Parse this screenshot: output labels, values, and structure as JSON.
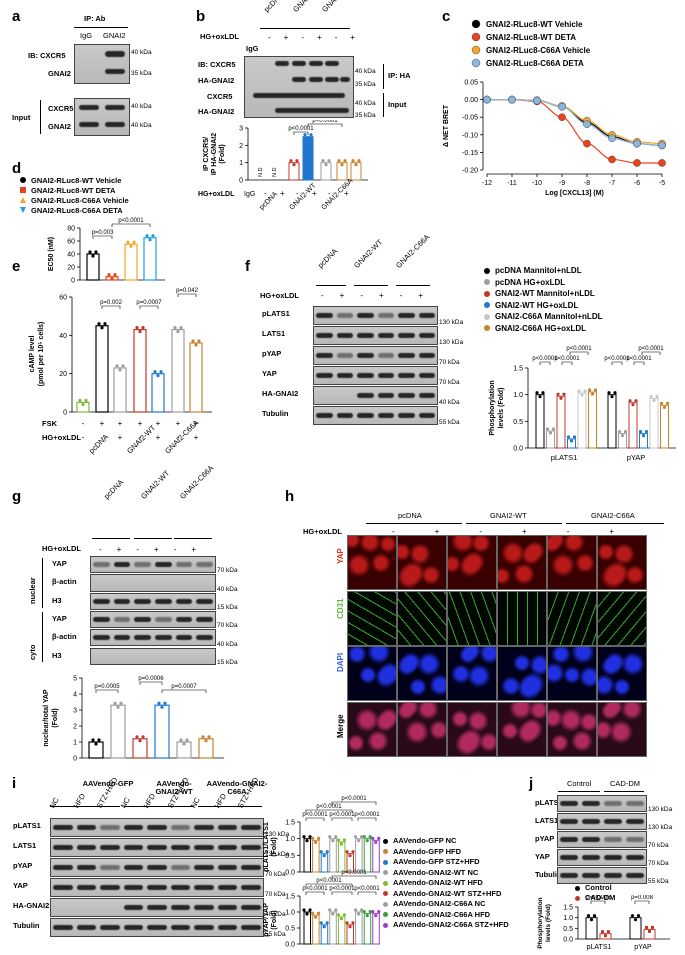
{
  "panels": {
    "a": {
      "letter": "a",
      "ip": "IP: Ab",
      "cols": [
        "IgG",
        "GNAI2"
      ],
      "rows": [
        "IB: CXCR5",
        "GNAI2",
        "CXCR5",
        "GNAI2"
      ],
      "input": "Input",
      "mw": [
        "40 kDa",
        "35 kDa",
        "40 kDa",
        "40 kDa"
      ]
    },
    "b": {
      "letter": "b",
      "groups": [
        "pcDNA",
        "GNAI2-WT",
        "GNAI2-C66A"
      ],
      "treat": "HG+oxLDL",
      "igg": "IgG",
      "rows": [
        "IB: CXCR5",
        "HA-GNAI2",
        "CXCR5",
        "HA-GNAI2"
      ],
      "ip": "IP: HA",
      "input": "Input",
      "mw": [
        "40 kDa",
        "35 kDa",
        "40 kDa",
        "35 kDa"
      ],
      "ylabel": "IP CXCR5/\nIP HA-GNAI2\n(Fold)",
      "pvals": [
        "p<0.0001",
        "p<0.0001"
      ],
      "nd": "N.D",
      "chart_data": {
        "type": "bar",
        "categories": [
          "IgG",
          "pcDNA -",
          "pcDNA +",
          "GNAI2-WT -",
          "GNAI2-WT +",
          "GNAI2-C66A -",
          "GNAI2-C66A +"
        ],
        "values": [
          0,
          0,
          1.0,
          2.5,
          1.0,
          1.0,
          1.0
        ],
        "ylim": [
          0,
          3
        ],
        "yticks": [
          "0",
          "1",
          "2",
          "3"
        ]
      }
    },
    "c": {
      "letter": "c",
      "ylabel": "Δ NET BRET",
      "xlabel": "Log [CXCL13] (M)",
      "legend": [
        "GNAI2-RLuc8-WT Vehicle",
        "GNAI2-RLuc8-WT DETA",
        "GNAI2-RLuc8-C66A Vehicle",
        "GNAI2-RLuc8-C66A DETA"
      ],
      "colors": [
        "#000000",
        "#e8431f",
        "#f6a52a",
        "#8ab7e0"
      ],
      "chart_data": {
        "type": "line",
        "x": [
          -12,
          -11,
          -10,
          -9,
          -8,
          -7,
          -6,
          -5
        ],
        "xlim": [
          -12,
          -5
        ],
        "ylim": [
          -0.2,
          0.05
        ],
        "yticks": [
          "0.05",
          "0.00",
          "-0.05",
          "-0.10",
          "-0.15",
          "-0.20"
        ],
        "xticks": [
          "-12",
          "-11",
          "-10",
          "-9",
          "-8",
          "-7",
          "-6",
          "-5"
        ],
        "series": [
          {
            "name": "GNAI2-RLuc8-WT Vehicle",
            "values": [
              0,
              0,
              -0.002,
              -0.02,
              -0.065,
              -0.105,
              -0.125,
              -0.13
            ]
          },
          {
            "name": "GNAI2-RLuc8-WT DETA",
            "values": [
              0,
              0,
              -0.005,
              -0.05,
              -0.125,
              -0.17,
              -0.18,
              -0.18
            ]
          },
          {
            "name": "GNAI2-RLuc8-C66A Vehicle",
            "values": [
              0,
              0,
              -0.002,
              -0.018,
              -0.06,
              -0.1,
              -0.12,
              -0.125
            ]
          },
          {
            "name": "GNAI2-RLuc8-C66A DETA",
            "values": [
              0,
              0,
              -0.003,
              -0.02,
              -0.07,
              -0.11,
              -0.125,
              -0.13
            ]
          }
        ]
      }
    },
    "d": {
      "letter": "d",
      "ylabel": "EC50 (nM)",
      "legend": [
        "GNAI2-RLuc8-WT Vehicle",
        "GNAI2-RLuc8-WT DETA",
        "GNAI2-RLuc8-C66A Vehicle",
        "GNAI2-RLuc8-C66A DETA"
      ],
      "pvals": [
        "p=0.003",
        "p<0.0001"
      ],
      "chart_data": {
        "type": "bar",
        "categories": [
          "WT Vehicle",
          "WT DETA",
          "C66A Vehicle",
          "C66A DETA"
        ],
        "values": [
          40,
          5,
          55,
          65
        ],
        "ylim": [
          0,
          80
        ],
        "yticks": [
          "0",
          "20",
          "40",
          "60",
          "80"
        ]
      }
    },
    "e": {
      "letter": "e",
      "ylabel": "cAMP level\n(pmol per 10⁵ cells)",
      "fsk": "FSK",
      "treat": "HG+oxLDL",
      "groups": [
        "pcDNA",
        "GNAI2-WT",
        "GNAI2-C66A"
      ],
      "pvals": [
        "p=0.002",
        "p=0.0007",
        "p=0.042"
      ],
      "chart_data": {
        "type": "bar",
        "categories": [
          "ctrl",
          "pcDNA -",
          "pcDNA +",
          "WT -",
          "WT +",
          "C66A -",
          "C66A +"
        ],
        "values": [
          5,
          45,
          23,
          43,
          20,
          43,
          36
        ],
        "ylim": [
          0,
          60
        ],
        "yticks": [
          "0",
          "20",
          "40",
          "60"
        ]
      }
    },
    "f": {
      "letter": "f",
      "groups": [
        "pcDNA",
        "GNAI2-WT",
        "GNAI2-C66A"
      ],
      "treat": "HG+oxLDL",
      "rows": [
        "pLATS1",
        "LATS1",
        "pYAP",
        "YAP",
        "HA-GNAI2",
        "Tubulin"
      ],
      "mw": [
        "130 kDa",
        "130 kDa",
        "70 kDa",
        "70 kDa",
        "40 kDa",
        "55 kDa"
      ],
      "legend": [
        "pcDNA Mannitol+nLDL",
        "pcDNA HG+oxLDL",
        "GNAI2-WT Mannitol+nLDL",
        "GNAI2-WT HG+oxLDL",
        "GNAI2-C66A Mannitol+nLDL",
        "GNAI2-C66A HG+oxLDL"
      ],
      "ylabel": "Phosphorylation\nlevels (Fold)",
      "pvals": [
        "p<0.0001",
        "p<0.0001",
        "p<0.0001",
        "p<0.0001",
        "p<0.0001",
        "p<0.0001"
      ],
      "chart_data": {
        "type": "bar",
        "categories": [
          "pLATS1",
          "pYAP"
        ],
        "series": [
          {
            "name": "pcDNA Mannitol+nLDL",
            "values": [
              1.0,
              1.0
            ]
          },
          {
            "name": "pcDNA HG+oxLDL",
            "values": [
              0.32,
              0.27
            ]
          },
          {
            "name": "GNAI2-WT Mannitol+nLDL",
            "values": [
              0.97,
              0.85
            ]
          },
          {
            "name": "GNAI2-WT HG+oxLDL",
            "values": [
              0.17,
              0.27
            ]
          },
          {
            "name": "GNAI2-C66A Mannitol+nLDL",
            "values": [
              1.03,
              0.93
            ]
          },
          {
            "name": "GNAI2-C66A HG+oxLDL",
            "values": [
              1.05,
              0.8
            ]
          }
        ],
        "ylim": [
          0,
          1.5
        ],
        "yticks": [
          "0.0",
          "0.5",
          "1.0",
          "1.5"
        ]
      }
    },
    "g": {
      "letter": "g",
      "groups": [
        "pcDNA",
        "GNAI2-WT",
        "GNAI2-C66A"
      ],
      "treat": "HG+oxLDL",
      "nuclear": "nuclear",
      "cyto": "cyto",
      "rows": [
        "YAP",
        "β-actin",
        "H3",
        "YAP",
        "β-actin",
        "H3"
      ],
      "mw": [
        "70 kDa",
        "40 kDa",
        "15 kDa",
        "70 kDa",
        "40 kDa",
        "15 kDa"
      ],
      "ylabel": "nuclear/total YAP\n(Fold)",
      "pvals": [
        "p=0.0005",
        "p=0.0006",
        "p=0.0007"
      ],
      "chart_data": {
        "type": "bar",
        "categories": [
          "pcDNA -",
          "pcDNA +",
          "WT -",
          "WT +",
          "C66A -",
          "C66A +"
        ],
        "values": [
          1.0,
          3.3,
          1.2,
          3.3,
          1.0,
          1.2
        ],
        "ylim": [
          0,
          5
        ],
        "yticks": [
          "0",
          "1",
          "2",
          "3",
          "4",
          "5"
        ]
      }
    },
    "h": {
      "letter": "h",
      "groups": [
        "pcDNA",
        "GNAI2-WT",
        "GNAI2-C66A"
      ],
      "treat": "HG+oxLDL",
      "rows": [
        "YAP",
        "CD31",
        "DAPI",
        "Merge"
      ]
    },
    "i": {
      "letter": "i",
      "groups": [
        "AAVendo-GFP",
        "AAVendo-GNAI2-WT",
        "AAVendo-GNAI2-C66A"
      ],
      "lanes": [
        "NC",
        "HFD",
        "STZ+HFD",
        "NC",
        "HFD",
        "STZ+HFD",
        "NC",
        "HFD",
        "STZ+HFD"
      ],
      "rows": [
        "pLATS1",
        "LATS1",
        "pYAP",
        "YAP",
        "HA-GNAI2",
        "Tubulin"
      ],
      "mw": [
        "130 kDa",
        "130 kDa",
        "70 kDa",
        "70 kDa",
        "40 kDa",
        "55 kDa"
      ],
      "legend": [
        "AAVendo-GFP NC",
        "AAVendo-GFP HFD",
        "AAVendo-GFP STZ+HFD",
        "AAVendo-GNAI2-WT NC",
        "AAVendo-GNAI2-WT HFD",
        "AAVendo-GNAI2-WT STZ+HFD",
        "AAVendo-GNAI2-C66A NC",
        "AAVendo-GNAI2-C66A HFD",
        "AAVendo-GNAI2-C66A STZ+HFD"
      ],
      "ylabel1": "pLATS1/LATS1\n(Fold)",
      "ylabel2": "pYAP/YAP\n(Fold)",
      "pval": "p<0.0001",
      "chart_data": [
        {
          "type": "bar",
          "categories": [
            "GFP NC",
            "GFP HFD",
            "GFP STZ+HFD",
            "WT NC",
            "WT HFD",
            "WT STZ+HFD",
            "C66A NC",
            "C66A HFD",
            "C66A STZ+HFD"
          ],
          "values": [
            1.0,
            0.95,
            0.55,
            1.0,
            0.9,
            0.55,
            1.0,
            1.0,
            0.95
          ],
          "ylim": [
            0,
            1.5
          ],
          "yticks": [
            "0.0",
            "0.5",
            "1.0",
            "1.5"
          ]
        },
        {
          "type": "bar",
          "categories": [
            "GFP NC",
            "GFP HFD",
            "GFP STZ+HFD",
            "WT NC",
            "WT HFD",
            "WT STZ+HFD",
            "C66A NC",
            "C66A HFD",
            "C66A STZ+HFD"
          ],
          "values": [
            1.0,
            0.9,
            0.6,
            1.0,
            0.85,
            0.6,
            1.0,
            0.95,
            0.95
          ],
          "ylim": [
            0,
            1.5
          ],
          "yticks": [
            "0.0",
            "0.5",
            "1.0",
            "1.5"
          ]
        }
      ]
    },
    "j": {
      "letter": "j",
      "groups": [
        "Control",
        "CAD-DM"
      ],
      "rows": [
        "pLATS1",
        "LATS1",
        "pYAP",
        "YAP",
        "Tubulin"
      ],
      "mw": [
        "130 kDa",
        "130 kDa",
        "70 kDa",
        "70 kDa",
        "55 kDa"
      ],
      "legend": [
        "Control",
        "CAD-DM"
      ],
      "ylabel": "Phosphorylation\nlevels (Fold)",
      "pvals": [
        "p=0.0005",
        "p=0.008"
      ],
      "chart_data": {
        "type": "bar",
        "categories": [
          "pLATS1",
          "pYAP"
        ],
        "series": [
          {
            "name": "Control",
            "values": [
              1.0,
              1.0
            ]
          },
          {
            "name": "CAD-DM",
            "values": [
              0.25,
              0.45
            ]
          }
        ],
        "ylim": [
          0,
          1.5
        ],
        "yticks": [
          "0.0",
          "0.5",
          "1.0",
          "1.5"
        ]
      }
    }
  },
  "signs": {
    "minus": "-",
    "plus": "+"
  },
  "colors": {
    "black": "#000000",
    "red": "#c0392b",
    "orange": "#f6a52a",
    "blue": "#1f77d0",
    "grey": "#9e9e9e",
    "brown": "#c9822e",
    "green": "#7fb93a",
    "purple": "#9b3fc6"
  }
}
